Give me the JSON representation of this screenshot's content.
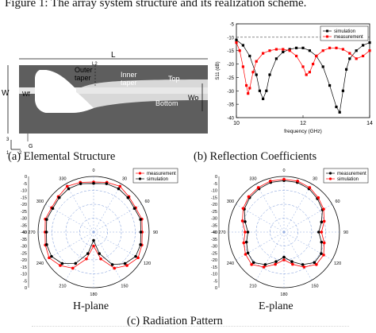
{
  "figure_title": "Figure 1: The array system structure and its realization scheme.",
  "structure": {
    "labels": {
      "L": "L",
      "L2": "L2",
      "outer": "Outer",
      "taper1": "taper",
      "inner": "Inner",
      "taper2": "taper",
      "top": "Top",
      "bottom": "Bottom",
      "W": "W",
      "Wf": "Wf",
      "Wo": "Wo",
      "G": "G",
      "axis3": "3",
      "axis1": "1",
      "axis2": "2"
    },
    "fill_color": "#5e5e5e",
    "light_color": "#cfcfcf"
  },
  "captions": {
    "a": "(a)    Elemental Structure",
    "b": "(b)  Reflection Coefficients",
    "c": "(c) Radiation Pattern",
    "h_plane": "H-plane",
    "e_plane": "E-plane"
  },
  "chart_data": [
    {
      "type": "line",
      "xlabel": "frequency (GHz)",
      "ylabel": "S11 (dB)",
      "xlim": [
        10,
        14
      ],
      "ylim": [
        -40,
        -5
      ],
      "xticks": [
        "10",
        "12",
        "14"
      ],
      "yticks": [
        "-5",
        "-10",
        "-15",
        "-20",
        "-25",
        "-30",
        "-35",
        "-40"
      ],
      "reference_line": -10,
      "legend_position": "top-right",
      "series": [
        {
          "name": "simulation",
          "color": "#000000",
          "x": [
            10.0,
            10.2,
            10.4,
            10.6,
            10.7,
            10.8,
            10.9,
            11.0,
            11.2,
            11.4,
            11.6,
            11.8,
            12.0,
            12.2,
            12.4,
            12.6,
            12.8,
            13.0,
            13.1,
            13.2,
            13.3,
            13.4,
            13.6,
            13.8,
            14.0
          ],
          "y": [
            -11,
            -13,
            -17,
            -24,
            -30,
            -33,
            -30,
            -24,
            -18,
            -15.5,
            -14.5,
            -14,
            -14,
            -15,
            -17,
            -21,
            -28,
            -36,
            -38,
            -30,
            -22,
            -18,
            -15,
            -13,
            -12
          ]
        },
        {
          "name": "measurement",
          "color": "#ff0000",
          "x": [
            10.0,
            10.1,
            10.2,
            10.3,
            10.35,
            10.4,
            10.5,
            10.6,
            10.8,
            11.0,
            11.2,
            11.4,
            11.6,
            11.8,
            12.0,
            12.1,
            12.2,
            12.3,
            12.4,
            12.6,
            12.8,
            13.0,
            13.2,
            13.4,
            13.6,
            13.8,
            14.0
          ],
          "y": [
            -12,
            -15,
            -21,
            -28,
            -31,
            -29,
            -23,
            -19,
            -16,
            -15,
            -14.5,
            -14.5,
            -15,
            -17,
            -21,
            -24,
            -23,
            -20,
            -17,
            -15,
            -14,
            -14,
            -14.5,
            -16,
            -18,
            -17,
            -15
          ]
        }
      ]
    },
    {
      "type": "polar",
      "title": "H-plane",
      "angle_ticks": [
        "0",
        "30",
        "60",
        "90",
        "120",
        "150",
        "180",
        "210",
        "240",
        "270",
        "300",
        "330"
      ],
      "radial_ticks": [
        "0",
        "-5",
        "-10",
        "-15",
        "-20",
        "-25",
        "-30",
        "-35",
        "-40"
      ],
      "rlim": [
        -40,
        0
      ],
      "legend_position": "top-right",
      "series": [
        {
          "name": "measurement",
          "color": "#ff0000",
          "theta": [
            0,
            15,
            30,
            45,
            60,
            75,
            90,
            105,
            120,
            135,
            150,
            165,
            180,
            195,
            210,
            225,
            240,
            255,
            270,
            285,
            300,
            315,
            330,
            345
          ],
          "r": [
            -4,
            -3,
            -2,
            -4,
            -5,
            -4,
            -5,
            -4,
            -3,
            -6,
            -10,
            -20,
            -30,
            -20,
            -10,
            -6,
            -3,
            -4,
            -5,
            -4,
            -5,
            -4,
            -2,
            -3
          ]
        },
        {
          "name": "simulation",
          "color": "#000000",
          "theta": [
            0,
            15,
            30,
            45,
            60,
            75,
            90,
            105,
            120,
            135,
            150,
            165,
            180,
            195,
            210,
            225,
            240,
            255,
            270,
            285,
            300,
            315,
            330,
            345
          ],
          "r": [
            -5,
            -4,
            -4,
            -5,
            -6,
            -5,
            -6,
            -5,
            -5,
            -8,
            -13,
            -24,
            -34,
            -24,
            -14,
            -8,
            -5,
            -5,
            -6,
            -5,
            -6,
            -5,
            -4,
            -4
          ]
        }
      ]
    },
    {
      "type": "polar",
      "title": "E-plane",
      "angle_ticks": [
        "0",
        "30",
        "60",
        "90",
        "120",
        "150",
        "180",
        "210",
        "240",
        "270",
        "300",
        "330"
      ],
      "radial_ticks": [
        "0",
        "-5",
        "-10",
        "-15",
        "-20",
        "-25",
        "-30",
        "-35",
        "-40"
      ],
      "rlim": [
        -40,
        0
      ],
      "legend_position": "top-right",
      "series": [
        {
          "name": "measurement",
          "color": "#000000",
          "theta": [
            0,
            15,
            30,
            45,
            60,
            75,
            90,
            105,
            120,
            135,
            150,
            165,
            180,
            195,
            210,
            225,
            240,
            255,
            270,
            285,
            300,
            315,
            330,
            345
          ],
          "r": [
            -3,
            -3,
            -4,
            -6,
            -8,
            -12,
            -15,
            -12,
            -9,
            -9,
            -13,
            -18,
            -22,
            -18,
            -13,
            -9,
            -10,
            -12,
            -14,
            -11,
            -7,
            -5,
            -4,
            -3
          ]
        },
        {
          "name": "simulation",
          "color": "#ff0000",
          "theta": [
            0,
            15,
            30,
            45,
            60,
            75,
            90,
            105,
            120,
            135,
            150,
            165,
            180,
            195,
            210,
            225,
            240,
            255,
            270,
            285,
            300,
            315,
            330,
            345
          ],
          "r": [
            -2,
            -2,
            -3,
            -5,
            -7,
            -10,
            -13,
            -10,
            -7,
            -7,
            -11,
            -16,
            -20,
            -16,
            -11,
            -7,
            -8,
            -10,
            -12,
            -9,
            -6,
            -4,
            -3,
            -2
          ]
        }
      ]
    }
  ]
}
